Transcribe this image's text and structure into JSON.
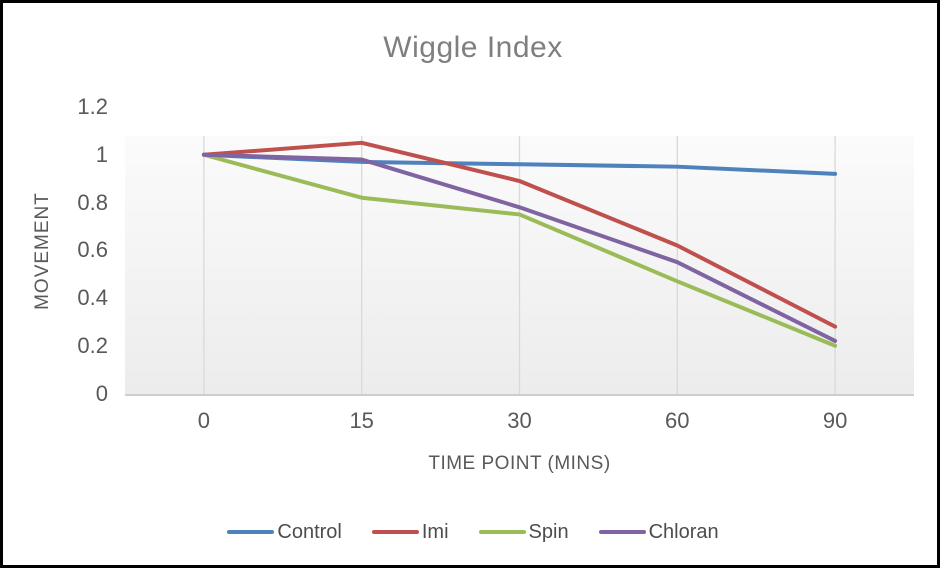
{
  "chart_data": {
    "type": "line",
    "title": "Wiggle Index",
    "xlabel": "TIME POINT (MINS)",
    "ylabel": "MOVEMENT",
    "categories": [
      "0",
      "15",
      "30",
      "60",
      "90"
    ],
    "series": [
      {
        "name": "Control",
        "color": "#4F81BD",
        "values": [
          1,
          0.97,
          0.96,
          0.95,
          0.92
        ]
      },
      {
        "name": "Imi",
        "color": "#C0504D",
        "values": [
          1,
          1.05,
          0.89,
          0.62,
          0.28
        ]
      },
      {
        "name": "Spin",
        "color": "#9BBB59",
        "values": [
          1,
          0.82,
          0.75,
          0.47,
          0.2
        ]
      },
      {
        "name": "Chloran",
        "color": "#8064A2",
        "values": [
          1,
          0.98,
          0.78,
          0.55,
          0.22
        ]
      }
    ],
    "ylim": [
      0,
      1.2
    ],
    "yticks": {
      "values": [
        0,
        0.2,
        0.4,
        0.6,
        0.8,
        1,
        1.2
      ],
      "labels": [
        "0",
        "0.2",
        "0.4",
        "0.6",
        "0.8",
        "1",
        "1.2"
      ]
    },
    "grid": "vertical-only",
    "legend_position": "bottom"
  },
  "colors": {
    "gridline": "#D9D9D9",
    "axis_line": "#CDCDCD",
    "plot_fill_top": "#FBFBFB",
    "plot_fill_bottom": "#ECECEC",
    "title_text": "#7F7F7F",
    "tick_text": "#595959",
    "legend_text": "#4D4D4D"
  }
}
